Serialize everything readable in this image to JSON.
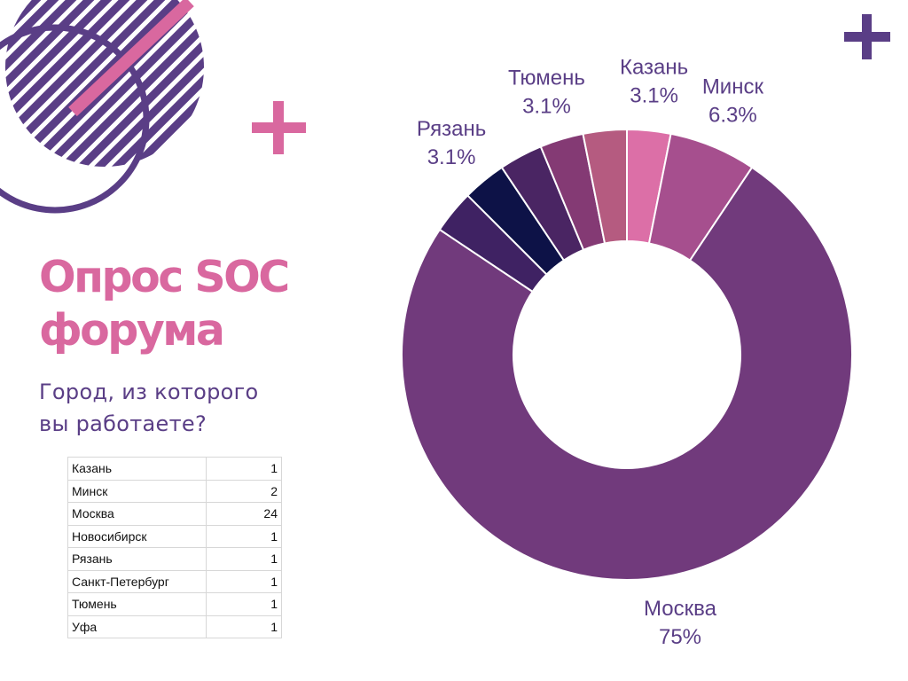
{
  "title": {
    "line1": "Опрос SOC",
    "line2": "форума"
  },
  "subtitle": {
    "line1": "Город, из которого",
    "line2": "вы работаете?"
  },
  "table": {
    "rows": [
      {
        "city": "Казань",
        "count": "1"
      },
      {
        "city": "Минск",
        "count": "2"
      },
      {
        "city": "Москва",
        "count": "24"
      },
      {
        "city": "Новосибирск",
        "count": "1"
      },
      {
        "city": "Рязань",
        "count": "1"
      },
      {
        "city": "Санкт-Петербург",
        "count": "1"
      },
      {
        "city": "Тюмень",
        "count": "1"
      },
      {
        "city": "Уфа",
        "count": "1"
      }
    ]
  },
  "colors": {
    "accent_pink": "#d9689f",
    "accent_purple": "#5a3e86",
    "label_text": "#5a3e86"
  },
  "chart_data": {
    "type": "pie",
    "donut": true,
    "title": "",
    "slices": [
      {
        "name": "Казань",
        "value": 1,
        "percent_label": "3.1%",
        "color": "#dc6fa7",
        "show_label": true
      },
      {
        "name": "Минск",
        "value": 2,
        "percent_label": "6.3%",
        "color": "#a64f8e",
        "show_label": true
      },
      {
        "name": "Москва",
        "value": 24,
        "percent_label": "75%",
        "color": "#713a7c",
        "show_label": true
      },
      {
        "name": "Новосибирск",
        "value": 1,
        "percent_label": "",
        "color": "#3f2263",
        "show_label": false
      },
      {
        "name": "Рязань",
        "value": 1,
        "percent_label": "3.1%",
        "color": "#0d1247",
        "show_label": true
      },
      {
        "name": "Санкт-Петербург",
        "value": 1,
        "percent_label": "",
        "color": "#4a2563",
        "show_label": false
      },
      {
        "name": "Тюмень",
        "value": 1,
        "percent_label": "3.1%",
        "color": "#843a74",
        "show_label": true
      },
      {
        "name": "Уфа",
        "value": 1,
        "percent_label": "",
        "color": "#b55b80",
        "show_label": false
      }
    ]
  }
}
